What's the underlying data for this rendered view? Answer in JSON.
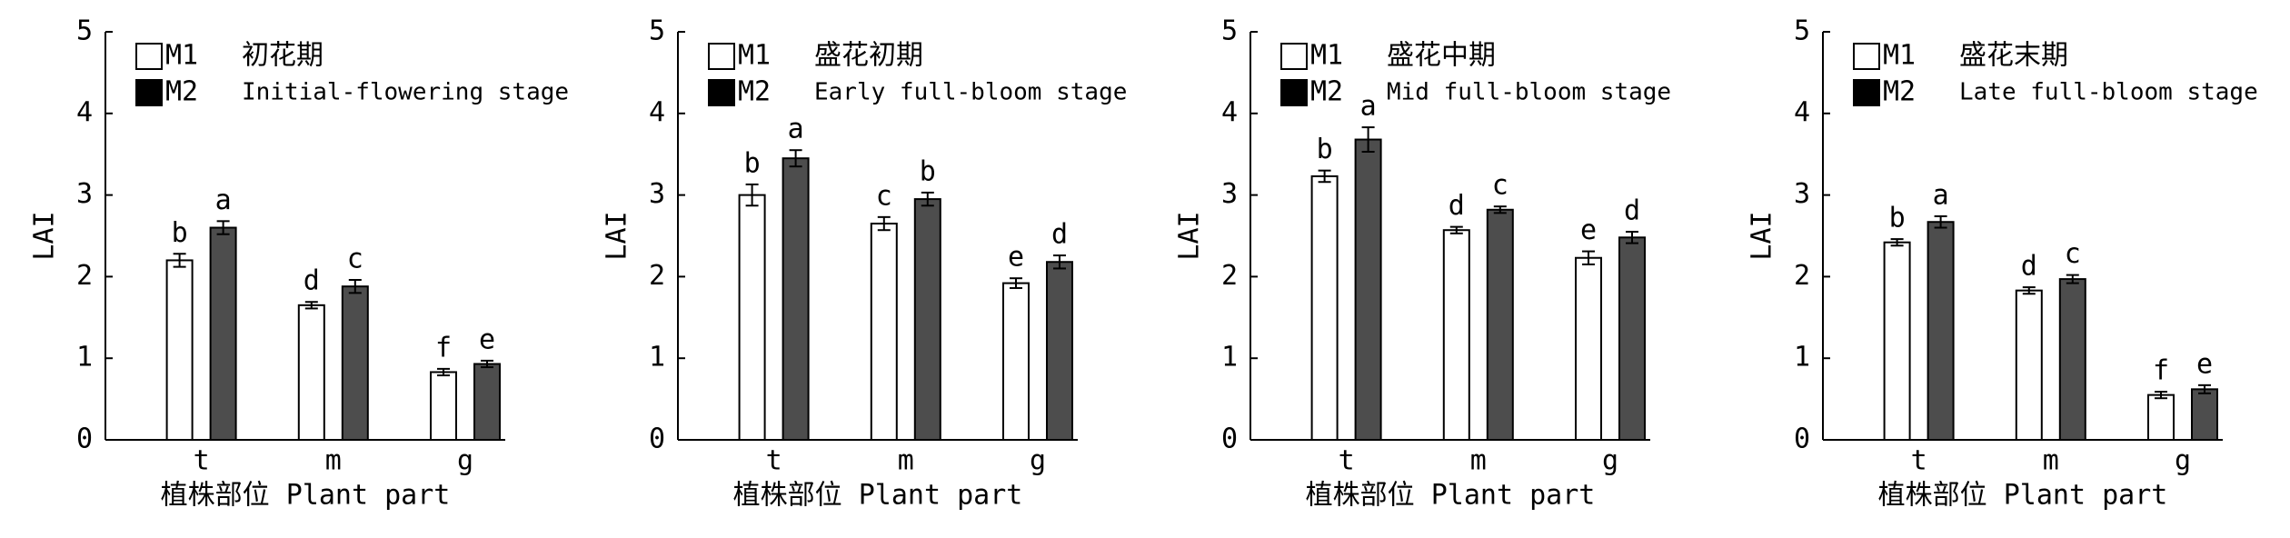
{
  "chart_data": [
    {
      "type": "bar",
      "title": "初花期",
      "subtitle": "Initial-flowering stage",
      "x_label": "植株部位 Plant part",
      "y_label": "LAI",
      "categories": [
        "t",
        "m",
        "g"
      ],
      "ylim": [
        0,
        5
      ],
      "yticks": [
        0,
        1,
        2,
        3,
        4,
        5
      ],
      "series": [
        {
          "name": "M1",
          "color": "#ffffff",
          "values": [
            2.2,
            1.65,
            0.83
          ],
          "errors": [
            0.08,
            0.04,
            0.04
          ],
          "letters": [
            "b",
            "d",
            "f"
          ]
        },
        {
          "name": "M2",
          "color": "#4d4d4d",
          "values": [
            2.6,
            1.88,
            0.93
          ],
          "errors": [
            0.08,
            0.08,
            0.04
          ],
          "letters": [
            "a",
            "c",
            "e"
          ]
        }
      ]
    },
    {
      "type": "bar",
      "title": "盛花初期",
      "subtitle": "Early full-bloom stage",
      "x_label": "植株部位 Plant part",
      "y_label": "LAI",
      "categories": [
        "t",
        "m",
        "g"
      ],
      "ylim": [
        0,
        5
      ],
      "yticks": [
        0,
        1,
        2,
        3,
        4,
        5
      ],
      "series": [
        {
          "name": "M1",
          "color": "#ffffff",
          "values": [
            3.0,
            2.65,
            1.92
          ],
          "errors": [
            0.13,
            0.08,
            0.06
          ],
          "letters": [
            "b",
            "c",
            "e"
          ]
        },
        {
          "name": "M2",
          "color": "#4d4d4d",
          "values": [
            3.45,
            2.95,
            2.18
          ],
          "errors": [
            0.1,
            0.08,
            0.08
          ],
          "letters": [
            "a",
            "b",
            "d"
          ]
        }
      ]
    },
    {
      "type": "bar",
      "title": "盛花中期",
      "subtitle": "Mid full-bloom stage",
      "x_label": "植株部位 Plant part",
      "y_label": "LAI",
      "categories": [
        "t",
        "m",
        "g"
      ],
      "ylim": [
        0,
        5
      ],
      "yticks": [
        0,
        1,
        2,
        3,
        4,
        5
      ],
      "series": [
        {
          "name": "M1",
          "color": "#ffffff",
          "values": [
            3.23,
            2.57,
            2.23
          ],
          "errors": [
            0.07,
            0.04,
            0.08
          ],
          "letters": [
            "b",
            "d",
            "e"
          ]
        },
        {
          "name": "M2",
          "color": "#4d4d4d",
          "values": [
            3.68,
            2.82,
            2.48
          ],
          "errors": [
            0.15,
            0.04,
            0.07
          ],
          "letters": [
            "a",
            "c",
            "d"
          ]
        }
      ]
    },
    {
      "type": "bar",
      "title": "盛花末期",
      "subtitle": "Late full-bloom stage",
      "x_label": "植株部位 Plant part",
      "y_label": "LAI",
      "categories": [
        "t",
        "m",
        "g"
      ],
      "ylim": [
        0,
        5
      ],
      "yticks": [
        0,
        1,
        2,
        3,
        4,
        5
      ],
      "series": [
        {
          "name": "M1",
          "color": "#ffffff",
          "values": [
            2.42,
            1.83,
            0.55
          ],
          "errors": [
            0.04,
            0.04,
            0.04
          ],
          "letters": [
            "b",
            "d",
            "f"
          ]
        },
        {
          "name": "M2",
          "color": "#4d4d4d",
          "values": [
            2.67,
            1.97,
            0.62
          ],
          "errors": [
            0.07,
            0.05,
            0.05
          ],
          "letters": [
            "a",
            "c",
            "e"
          ]
        }
      ]
    }
  ]
}
